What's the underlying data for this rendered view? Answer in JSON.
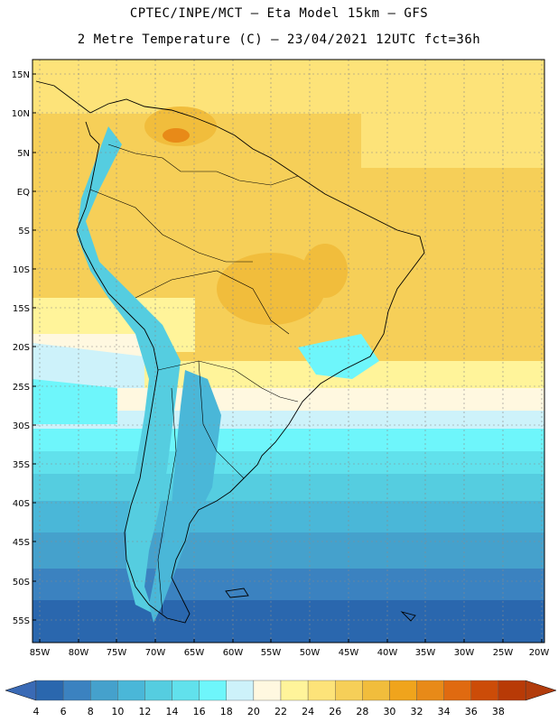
{
  "title": {
    "line1": "CPTEC/INPE/MCT –  Eta Model 15km – GFS",
    "line2": "2 Metre Temperature (C) – 23/04/2021 12UTC fct=36h"
  },
  "lat_labels": [
    "15N",
    "10N",
    "5N",
    "EQ",
    "5S",
    "10S",
    "15S",
    "20S",
    "25S",
    "30S",
    "35S",
    "40S",
    "45S",
    "50S",
    "55S"
  ],
  "lon_labels": [
    "85W",
    "80W",
    "75W",
    "70W",
    "65W",
    "60W",
    "55W",
    "50W",
    "45W",
    "40W",
    "35W",
    "30W",
    "25W",
    "20W"
  ],
  "colorbar": {
    "labels": [
      "4",
      "6",
      "8",
      "10",
      "12",
      "14",
      "16",
      "18",
      "20",
      "22",
      "24",
      "26",
      "28",
      "30",
      "32",
      "34",
      "36",
      "38"
    ],
    "colors": [
      "#2a67ae",
      "#3b82c0",
      "#45a1cc",
      "#4ab7d8",
      "#55cde0",
      "#61e1ec",
      "#6ef6fb",
      "#cdf2fa",
      "#fff8e0",
      "#fff49a",
      "#fde379",
      "#f6cf58",
      "#f1bd3c",
      "#f0a41c",
      "#e88a18",
      "#e06a10",
      "#cc4c08",
      "#b83a06"
    ],
    "left_arrow_color": "#3a6ab5",
    "right_arrow_color": "#b23c0c"
  }
}
